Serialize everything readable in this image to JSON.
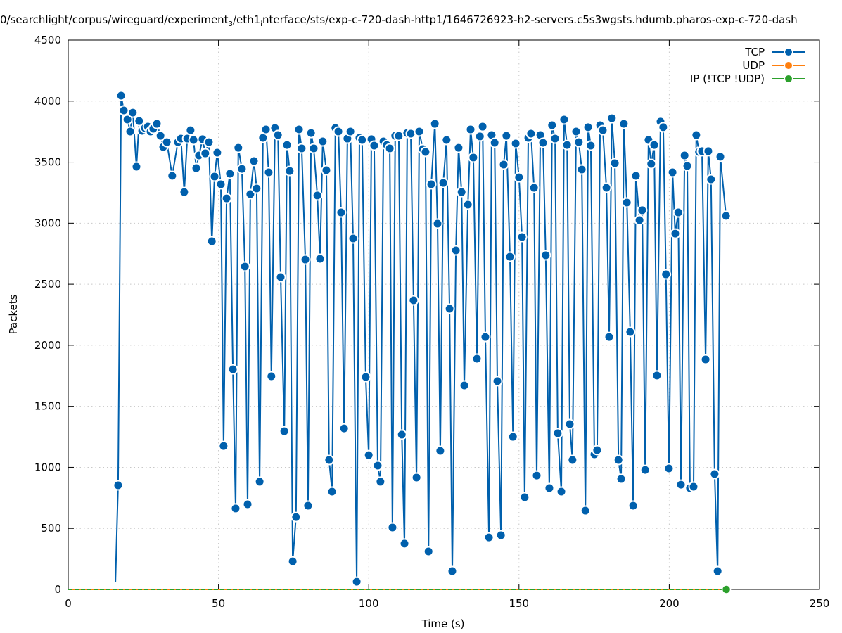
{
  "chart_data": {
    "type": "line",
    "title_parts": [
      "0/searchlight/corpus/wireguard/experiment",
      "3",
      "/eth1",
      "i",
      "nterface/sts/exp-c-720-dash-http1/1646726923-h2-servers.c5s3wgsts.hdumb.pharos-exp-c-720-dash"
    ],
    "xlabel": "Time (s)",
    "ylabel": "Packets",
    "xlim": [
      0,
      250
    ],
    "ylim": [
      0,
      4500
    ],
    "xticks": [
      0,
      50,
      100,
      150,
      200,
      250
    ],
    "yticks": [
      0,
      500,
      1000,
      1500,
      2000,
      2500,
      3000,
      3500,
      4000,
      4500
    ],
    "grid": true,
    "legend_position": "top-right",
    "series": [
      {
        "name": "TCP",
        "color": "#0060ad",
        "x": [
          15.7,
          16.6,
          17.6,
          18.5,
          19.7,
          20.6,
          21.5,
          22.7,
          23.6,
          24.6,
          25.5,
          26.5,
          27.4,
          28.3,
          29.5,
          30.7,
          31.6,
          32.8,
          34.6,
          36.5,
          37.5,
          38.6,
          39.6,
          40.7,
          41.7,
          42.6,
          43.5,
          44.7,
          45.6,
          46.8,
          47.8,
          48.7,
          49.6,
          50.8,
          51.7,
          52.7,
          53.8,
          54.8,
          55.7,
          56.6,
          57.8,
          58.8,
          59.7,
          60.6,
          61.8,
          62.7,
          63.7,
          64.8,
          65.8,
          66.7,
          67.6,
          68.8,
          69.8,
          70.7,
          71.9,
          72.8,
          73.7,
          74.7,
          75.8,
          76.8,
          77.7,
          78.9,
          79.8,
          80.8,
          81.7,
          82.9,
          83.8,
          84.7,
          85.9,
          86.8,
          87.8,
          88.9,
          89.9,
          90.8,
          91.8,
          92.9,
          93.9,
          94.8,
          96.0,
          96.9,
          97.8,
          99.0,
          100.0,
          100.9,
          101.8,
          103.0,
          103.9,
          104.9,
          106.0,
          107.0,
          107.9,
          108.8,
          110.0,
          111.0,
          111.9,
          112.8,
          114.0,
          114.9,
          115.9,
          116.8,
          118.0,
          118.9,
          119.9,
          120.8,
          122.0,
          122.9,
          123.8,
          124.8,
          125.9,
          126.9,
          127.8,
          129.0,
          129.9,
          130.9,
          131.8,
          133.0,
          133.9,
          134.8,
          136.0,
          137.0,
          137.9,
          138.8,
          140.0,
          140.9,
          141.9,
          142.8,
          144.0,
          144.9,
          145.8,
          147.0,
          148.0,
          148.9,
          150.0,
          151.0,
          151.9,
          153.1,
          154.0,
          155.0,
          155.9,
          157.1,
          158.0,
          158.9,
          160.1,
          161.0,
          162.0,
          162.9,
          164.1,
          165.0,
          166.0,
          166.9,
          167.8,
          169.0,
          169.9,
          170.9,
          172.1,
          173.0,
          173.9,
          175.1,
          176.0,
          177.0,
          177.9,
          179.1,
          180.0,
          180.9,
          181.9,
          183.1,
          184.0,
          184.9,
          185.9,
          187.0,
          188.0,
          188.9,
          190.1,
          191.0,
          192.0,
          193.1,
          194.0,
          195.0,
          195.9,
          197.1,
          198.0,
          198.9,
          199.9,
          201.1,
          202.0,
          203.0,
          203.9,
          205.1,
          206.0,
          206.9,
          208.1,
          209.0,
          209.9,
          210.9,
          212.1,
          213.0,
          213.9,
          215.1,
          216.1,
          217.0,
          218.9
        ],
        "y": [
          58,
          853,
          4045,
          3924,
          3849,
          3751,
          3906,
          3463,
          3837,
          3757,
          3780,
          3791,
          3751,
          3774,
          3814,
          3716,
          3624,
          3664,
          3388,
          3664,
          3693,
          3255,
          3693,
          3762,
          3682,
          3451,
          3555,
          3688,
          3572,
          3664,
          2852,
          3382,
          3578,
          3319,
          1175,
          3203,
          3405,
          1803,
          663,
          3618,
          3445,
          2645,
          697,
          3238,
          3509,
          3284,
          882,
          3699,
          3768,
          3417,
          1746,
          3780,
          3722,
          2558,
          1296,
          3641,
          3428,
          230,
          593,
          3768,
          3613,
          2702,
          686,
          3739,
          3613,
          3227,
          2708,
          3670,
          3434,
          1060,
          801,
          3780,
          3751,
          3088,
          1319,
          3693,
          3751,
          2875,
          63,
          3699,
          3682,
          1740,
          1100,
          3688,
          3636,
          1014,
          882,
          3670,
          3641,
          3613,
          507,
          3716,
          3716,
          1268,
          375,
          3739,
          3734,
          2368,
          916,
          3751,
          3607,
          3584,
          311,
          3319,
          3814,
          2996,
          1135,
          3330,
          3682,
          2299,
          150,
          2777,
          3618,
          3255,
          1671,
          3152,
          3768,
          3538,
          1890,
          3711,
          3791,
          2068,
          426,
          3722,
          3659,
          1706,
          444,
          3480,
          3716,
          2725,
          1250,
          3653,
          3376,
          2887,
          755,
          3699,
          3734,
          3290,
          933,
          3722,
          3659,
          2737,
          830,
          3803,
          3693,
          1279,
          801,
          3849,
          3641,
          1354,
          1060,
          3751,
          3664,
          3440,
          645,
          3786,
          3636,
          1106,
          1141,
          3803,
          3762,
          3290,
          2068,
          3860,
          3492,
          1060,
          905,
          3814,
          3169,
          2109,
          686,
          3388,
          3025,
          3106,
          979,
          3682,
          3486,
          3641,
          1752,
          3832,
          3786,
          2581,
          991,
          3417,
          2915,
          3088,
          858,
          3555,
          3469,
          830,
          841,
          3722,
          3584,
          3590,
          1884,
          3590,
          3359,
          945,
          150,
          3544,
          3060
        ]
      },
      {
        "name": "UDP",
        "color": "#ff7f0e",
        "x": [
          0,
          219
        ],
        "y": [
          0,
          0
        ]
      },
      {
        "name": "IP (!TCP  !UDP)",
        "color": "#2ca02c",
        "x": [
          0,
          219
        ],
        "y": [
          0,
          0
        ]
      }
    ]
  }
}
